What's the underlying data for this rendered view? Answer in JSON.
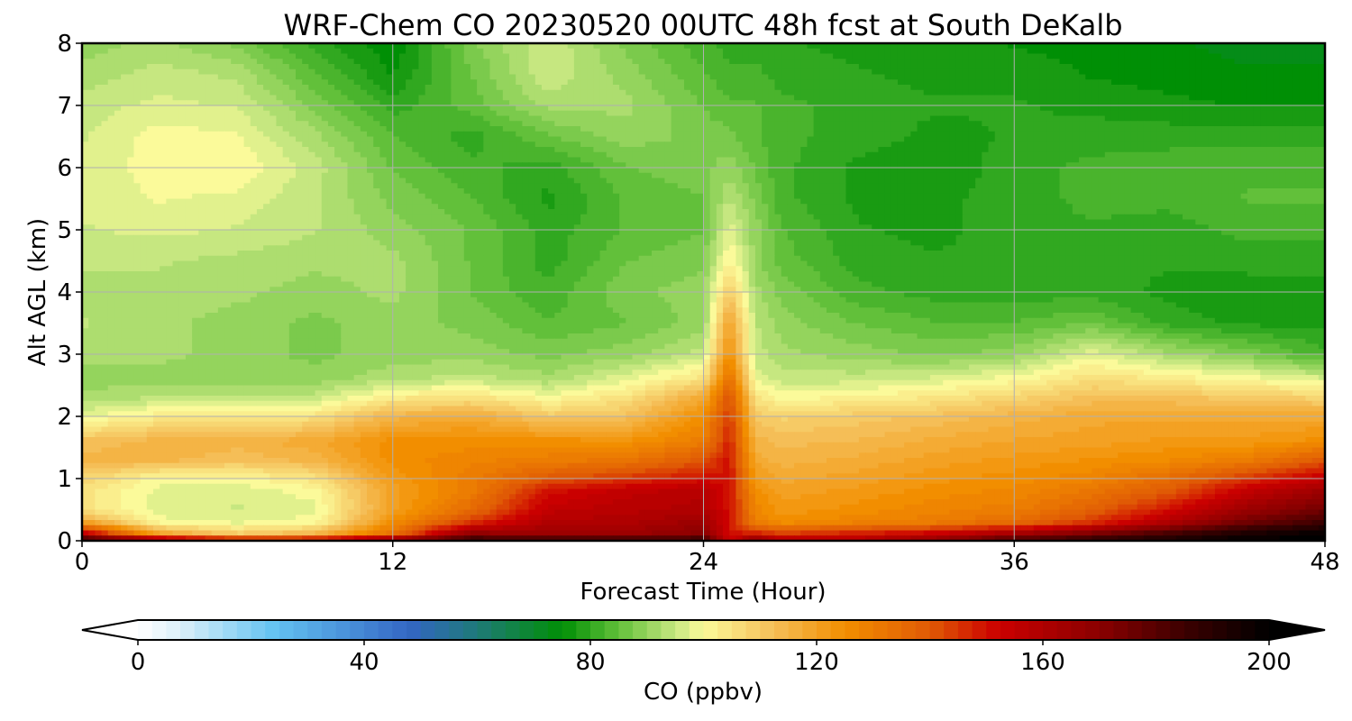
{
  "chart_data": {
    "type": "heatmap",
    "title": "WRF-Chem CO  20230520 00UTC 48h fcst at South DeKalb",
    "xlabel": "Forecast Time (Hour)",
    "ylabel": "Alt AGL (km)",
    "xlim": [
      0,
      48
    ],
    "ylim": [
      0,
      8
    ],
    "x_ticks": [
      0,
      12,
      24,
      36,
      48
    ],
    "y_ticks": [
      0,
      1,
      2,
      3,
      4,
      5,
      6,
      7,
      8
    ],
    "grid": true,
    "x": [
      0,
      3,
      6,
      9,
      12,
      15,
      18,
      21,
      24,
      25,
      26,
      27,
      30,
      33,
      36,
      39,
      42,
      45,
      48
    ],
    "y": [
      0,
      0.1,
      0.3,
      0.5,
      0.8,
      1.0,
      1.3,
      1.6,
      2.0,
      2.3,
      2.6,
      3.0,
      3.5,
      4.0,
      4.5,
      5.0,
      5.5,
      6.0,
      6.5,
      7.0,
      7.5,
      8.0
    ],
    "z": [
      [
        190,
        175,
        165,
        165,
        175,
        190,
        190,
        190,
        190,
        150,
        175,
        160,
        160,
        170,
        185,
        190,
        195,
        200,
        200
      ],
      [
        160,
        120,
        110,
        115,
        135,
        170,
        165,
        165,
        170,
        150,
        150,
        145,
        150,
        155,
        165,
        175,
        185,
        195,
        200
      ],
      [
        120,
        100,
        98,
        100,
        125,
        145,
        160,
        160,
        165,
        150,
        130,
        125,
        128,
        130,
        135,
        145,
        160,
        175,
        185
      ],
      [
        105,
        97,
        96,
        98,
        120,
        135,
        155,
        158,
        160,
        150,
        128,
        122,
        125,
        128,
        130,
        138,
        150,
        165,
        175
      ],
      [
        105,
        98,
        97,
        100,
        120,
        130,
        150,
        155,
        158,
        150,
        125,
        120,
        122,
        125,
        127,
        132,
        140,
        155,
        165
      ],
      [
        108,
        100,
        100,
        105,
        122,
        130,
        140,
        145,
        150,
        150,
        122,
        118,
        120,
        123,
        125,
        128,
        135,
        145,
        155
      ],
      [
        115,
        115,
        112,
        115,
        125,
        128,
        130,
        132,
        140,
        150,
        118,
        115,
        117,
        120,
        122,
        124,
        126,
        130,
        140
      ],
      [
        112,
        115,
        115,
        118,
        125,
        125,
        125,
        124,
        130,
        148,
        115,
        113,
        114,
        117,
        119,
        120,
        122,
        122,
        125
      ],
      [
        98,
        103,
        103,
        105,
        115,
        118,
        110,
        112,
        125,
        145,
        110,
        108,
        110,
        112,
        115,
        118,
        118,
        118,
        118
      ],
      [
        92,
        94,
        94,
        95,
        103,
        105,
        100,
        105,
        118,
        142,
        105,
        100,
        102,
        104,
        108,
        112,
        112,
        110,
        108
      ],
      [
        90,
        90,
        90,
        90,
        93,
        95,
        92,
        98,
        105,
        135,
        98,
        95,
        95,
        97,
        100,
        106,
        103,
        100,
        97
      ],
      [
        92,
        92,
        90,
        88,
        90,
        90,
        88,
        90,
        95,
        125,
        95,
        92,
        90,
        88,
        90,
        98,
        92,
        88,
        82
      ],
      [
        94,
        92,
        90,
        88,
        90,
        88,
        84,
        86,
        90,
        120,
        94,
        90,
        86,
        84,
        84,
        86,
        80,
        78,
        78
      ],
      [
        93,
        93,
        92,
        90,
        92,
        86,
        82,
        88,
        90,
        110,
        92,
        88,
        82,
        80,
        80,
        80,
        78,
        77,
        77
      ],
      [
        94,
        94,
        93,
        92,
        92,
        86,
        80,
        86,
        88,
        102,
        90,
        85,
        80,
        79,
        80,
        80,
        79,
        80,
        80
      ],
      [
        96,
        97,
        96,
        94,
        90,
        86,
        80,
        84,
        86,
        98,
        90,
        84,
        79,
        78,
        80,
        81,
        80,
        82,
        82
      ],
      [
        97,
        99,
        98,
        94,
        88,
        84,
        78,
        84,
        86,
        94,
        88,
        82,
        78,
        78,
        80,
        82,
        82,
        84,
        84
      ],
      [
        97,
        100,
        101,
        95,
        86,
        82,
        80,
        86,
        88,
        90,
        86,
        82,
        78,
        77,
        80,
        82,
        83,
        83,
        83
      ],
      [
        96,
        100,
        99,
        92,
        84,
        80,
        86,
        90,
        88,
        87,
        84,
        82,
        80,
        78,
        79,
        80,
        80,
        80,
        80
      ],
      [
        95,
        97,
        96,
        88,
        80,
        85,
        92,
        92,
        86,
        84,
        84,
        82,
        80,
        79,
        79,
        78,
        77,
        76,
        76
      ],
      [
        92,
        95,
        93,
        84,
        76,
        86,
        96,
        90,
        84,
        82,
        82,
        80,
        79,
        78,
        78,
        76,
        75,
        74,
        74
      ],
      [
        90,
        92,
        88,
        80,
        74,
        88,
        96,
        88,
        82,
        80,
        80,
        79,
        78,
        77,
        76,
        75,
        74,
        73,
        73
      ]
    ],
    "colorbar": {
      "label": "CO  (ppbv)",
      "min": 0,
      "max": 200,
      "ticks": [
        0,
        40,
        80,
        120,
        160,
        200
      ],
      "extend": "both",
      "stops": [
        {
          "v": 0,
          "c": "#ffffff"
        },
        {
          "v": 8,
          "c": "#d8eef8"
        },
        {
          "v": 24,
          "c": "#64c3f2"
        },
        {
          "v": 48,
          "c": "#3366c4"
        },
        {
          "v": 60,
          "c": "#1e7a78"
        },
        {
          "v": 75,
          "c": "#008f05"
        },
        {
          "v": 85,
          "c": "#62c03a"
        },
        {
          "v": 95,
          "c": "#c6e780"
        },
        {
          "v": 100,
          "c": "#fbfa9a"
        },
        {
          "v": 112,
          "c": "#f5c05a"
        },
        {
          "v": 125,
          "c": "#f28e00"
        },
        {
          "v": 140,
          "c": "#e05a05"
        },
        {
          "v": 152,
          "c": "#cc0000"
        },
        {
          "v": 170,
          "c": "#8a0000"
        },
        {
          "v": 185,
          "c": "#3c0000"
        },
        {
          "v": 200,
          "c": "#000000"
        }
      ]
    }
  }
}
